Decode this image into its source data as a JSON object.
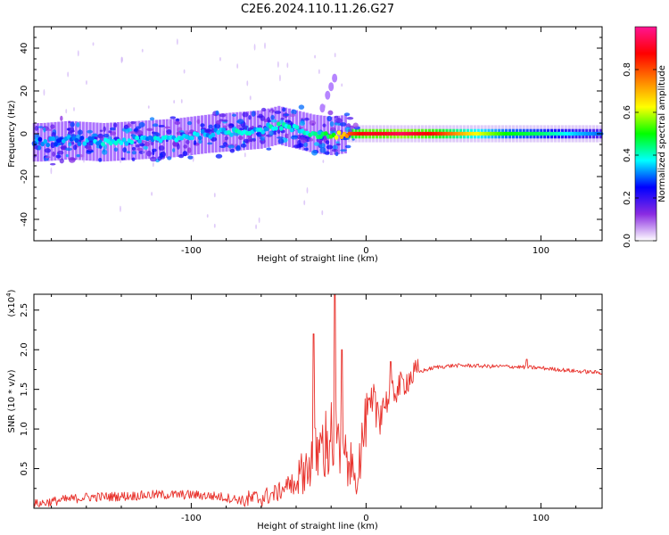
{
  "title": "C2E6.2024.110.11.26.G27",
  "chart_data": [
    {
      "type": "heatmap",
      "xlabel": "Height of straight line (km)",
      "ylabel": "Frequency (Hz)",
      "xlim": [
        -190,
        135
      ],
      "ylim": [
        -50,
        50
      ],
      "xticks": [
        -100,
        0,
        100
      ],
      "yticks": [
        -40,
        -20,
        0,
        20,
        40
      ],
      "colorbar": {
        "label": "Normalized spectral amplitude",
        "range": [
          0,
          1
        ],
        "ticks": [
          "0.0",
          "0.2",
          "0.4",
          "0.6",
          "0.8"
        ],
        "tick_values": [
          0.0,
          0.2,
          0.4,
          0.6,
          0.8
        ],
        "colors": [
          "#ffffff",
          "#8a2be2",
          "#0000ff",
          "#00ffff",
          "#00ff00",
          "#ffff00",
          "#ff8000",
          "#ff0000",
          "#ff1493"
        ]
      },
      "ridge": {
        "x": [
          -185,
          -170,
          -150,
          -130,
          -110,
          -90,
          -75,
          -60,
          -50,
          -40,
          -30,
          -20,
          -10,
          0,
          10,
          20,
          40,
          60,
          80,
          100,
          120,
          135
        ],
        "y": [
          -4,
          -3,
          -4,
          -3,
          -2,
          0,
          1,
          2,
          4,
          2,
          0,
          -1,
          0,
          0,
          0,
          0,
          0,
          0,
          0,
          0,
          0,
          0
        ],
        "amplitude": [
          0.3,
          0.3,
          0.35,
          0.35,
          0.35,
          0.35,
          0.4,
          0.35,
          0.4,
          0.35,
          0.4,
          0.5,
          0.8,
          0.9,
          0.9,
          0.95,
          0.85,
          0.65,
          0.5,
          0.45,
          0.35,
          0.3
        ]
      },
      "spur": {
        "x": [
          -25,
          -22,
          -20,
          -18
        ],
        "y": [
          12,
          18,
          22,
          26
        ]
      }
    },
    {
      "type": "line",
      "xlabel": "Height of straight line (km)",
      "ylabel": "SNR (10 * v/v)",
      "yscale_label": "(x10",
      "yscale_exp": "4",
      "yscale_close": ")",
      "xlim": [
        -190,
        135
      ],
      "ylim": [
        0,
        2.7
      ],
      "xticks": [
        -100,
        0,
        100
      ],
      "yticks": [
        0.5,
        1.0,
        1.5,
        2.0,
        2.5
      ],
      "ytick_labels": [
        "0.5",
        "1.0",
        "1.5",
        "2.0",
        "2.5"
      ],
      "color": "#e8302a",
      "x": [
        -190,
        -175,
        -160,
        -140,
        -120,
        -100,
        -85,
        -70,
        -60,
        -50,
        -45,
        -40,
        -35,
        -30,
        -25,
        -20,
        -15,
        -10,
        -5,
        0,
        5,
        10,
        15,
        20,
        25,
        30,
        40,
        50,
        60,
        70,
        80,
        90,
        100,
        110,
        120,
        135
      ],
      "y": [
        0.05,
        0.1,
        0.14,
        0.15,
        0.17,
        0.17,
        0.15,
        0.1,
        0.13,
        0.2,
        0.3,
        0.4,
        0.55,
        0.7,
        0.85,
        1.0,
        0.8,
        0.6,
        0.5,
        1.1,
        1.25,
        1.3,
        1.45,
        1.55,
        1.65,
        1.72,
        1.78,
        1.8,
        1.8,
        1.79,
        1.79,
        1.78,
        1.77,
        1.75,
        1.73,
        1.71
      ],
      "spikes": [
        {
          "x": -30,
          "y": 2.2
        },
        {
          "x": -18,
          "y": 2.7
        },
        {
          "x": -14,
          "y": 2.0
        },
        {
          "x": 14,
          "y": 1.85
        },
        {
          "x": 92,
          "y": 1.88
        }
      ]
    }
  ]
}
